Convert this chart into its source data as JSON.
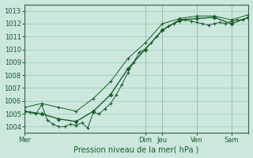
{
  "xlabel": "Pression niveau de la mer( hPa )",
  "background_color": "#cce8dd",
  "plot_bg_color": "#cce8dd",
  "grid_color": "#99ccbb",
  "line_color": "#1a5c2a",
  "ylim": [
    1003.5,
    1013.5
  ],
  "yticks": [
    1004,
    1005,
    1006,
    1007,
    1008,
    1009,
    1010,
    1011,
    1012,
    1013
  ],
  "xlim": [
    0,
    312
  ],
  "day_positions": [
    0,
    168,
    192,
    240,
    288
  ],
  "day_labels": [
    "Mer",
    "Dim",
    "Jeu",
    "Ven",
    "Sam"
  ],
  "vline_positions": [
    0,
    168,
    192,
    240,
    288,
    312
  ],
  "line1_x": [
    0,
    8,
    16,
    24,
    32,
    40,
    48,
    56,
    64,
    72,
    80,
    88,
    96,
    104,
    112,
    120,
    128,
    136,
    144,
    152,
    160,
    168,
    176,
    184,
    192,
    200,
    208,
    216,
    224,
    232,
    240,
    248,
    256,
    264,
    272,
    280,
    288,
    296,
    304,
    312
  ],
  "line1_y": [
    1005.2,
    1005.1,
    1005.0,
    1005.7,
    1004.5,
    1004.2,
    1004.0,
    1004.0,
    1004.2,
    1004.1,
    1004.3,
    1003.9,
    1005.1,
    1005.0,
    1005.4,
    1005.8,
    1006.5,
    1007.3,
    1008.2,
    1009.0,
    1009.8,
    1010.0,
    1010.5,
    1011.0,
    1011.5,
    1011.8,
    1012.0,
    1012.2,
    1012.3,
    1012.2,
    1012.1,
    1012.0,
    1011.9,
    1012.0,
    1012.1,
    1012.0,
    1012.2,
    1012.3,
    1012.3,
    1012.5
  ],
  "line2_x": [
    0,
    24,
    48,
    72,
    96,
    120,
    144,
    168,
    192,
    216,
    240,
    264,
    288,
    312
  ],
  "line2_y": [
    1005.2,
    1005.0,
    1004.6,
    1004.4,
    1005.2,
    1006.5,
    1008.5,
    1010.0,
    1011.5,
    1012.3,
    1012.4,
    1012.5,
    1012.0,
    1012.5
  ],
  "line3_x": [
    0,
    24,
    48,
    72,
    96,
    120,
    144,
    168,
    192,
    216,
    240,
    264,
    288,
    312
  ],
  "line3_y": [
    1005.5,
    1005.8,
    1005.5,
    1005.2,
    1006.2,
    1007.5,
    1009.3,
    1010.5,
    1012.0,
    1012.4,
    1012.6,
    1012.6,
    1012.3,
    1012.7
  ]
}
